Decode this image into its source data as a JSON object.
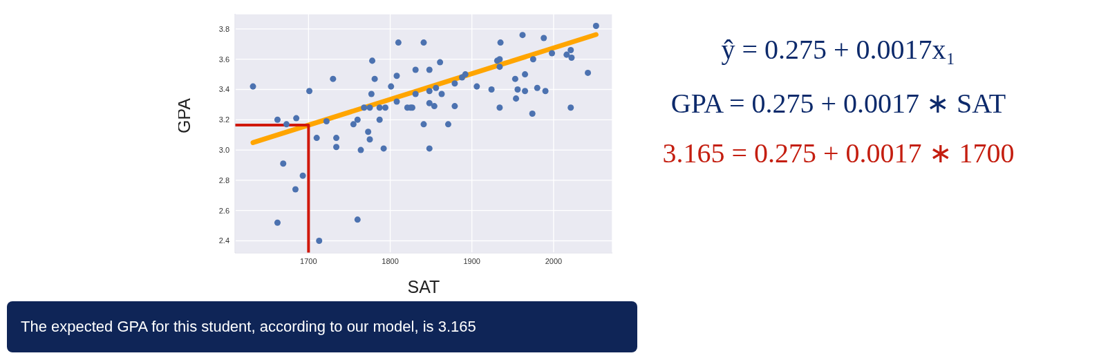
{
  "chart_data": {
    "type": "scatter",
    "xlabel": "SAT",
    "ylabel": "GPA",
    "xlim": [
      1610,
      2072
    ],
    "xticks": [
      1700,
      1800,
      1900,
      2000
    ],
    "ylim": [
      2.32,
      3.9
    ],
    "yticks": [
      2.4,
      2.6,
      2.8,
      {
        "value": 3,
        "label": "3.0"
      },
      3.2,
      3.4,
      3.6,
      3.8
    ],
    "grid": true,
    "series": [
      {
        "color": "#4c72b0",
        "x": [
          1632,
          1662,
          1673,
          1685,
          1669,
          1693,
          1684,
          1662,
          1701,
          1710,
          1713,
          1722,
          1730,
          1734,
          1734,
          1755,
          1760,
          1764,
          1760,
          1773,
          1775,
          1768,
          1775,
          1777,
          1778,
          1781,
          1787,
          1794,
          1787,
          1792,
          1801,
          1808,
          1810,
          1808,
          1821,
          1827,
          1831,
          1825,
          1831,
          1841,
          1848,
          1841,
          1848,
          1848,
          1854,
          1856,
          1861,
          1863,
          1848,
          1871,
          1879,
          1879,
          1888,
          1892,
          1906,
          1924,
          1934,
          1931,
          1934,
          1934,
          1935,
          1953,
          1954,
          1956,
          1965,
          1965,
          1962,
          1975,
          1974,
          1980,
          1990,
          1988,
          1998,
          2016,
          2021,
          2022,
          2021,
          2042,
          2052
        ],
        "values": [
          3.42,
          3.2,
          3.17,
          3.21,
          2.91,
          2.83,
          2.74,
          2.52,
          3.39,
          3.08,
          2.4,
          3.19,
          3.47,
          3.08,
          3.02,
          3.17,
          3.2,
          3.0,
          2.54,
          3.12,
          3.07,
          3.28,
          3.28,
          3.37,
          3.59,
          3.47,
          3.28,
          3.28,
          3.2,
          3.01,
          3.42,
          3.49,
          3.71,
          3.32,
          3.28,
          3.28,
          3.53,
          3.28,
          3.37,
          3.71,
          3.53,
          3.17,
          3.39,
          3.31,
          3.29,
          3.41,
          3.58,
          3.37,
          3.01,
          3.17,
          3.29,
          3.44,
          3.48,
          3.5,
          3.42,
          3.4,
          3.28,
          3.59,
          3.6,
          3.55,
          3.71,
          3.47,
          3.34,
          3.4,
          3.5,
          3.39,
          3.76,
          3.6,
          3.24,
          3.41,
          3.39,
          3.74,
          3.64,
          3.63,
          3.66,
          3.61,
          3.28,
          3.51,
          3.82
        ]
      },
      {
        "type": "line",
        "color": "#ffa500",
        "x": [
          1632,
          2052
        ],
        "values": [
          3.049,
          3.763
        ]
      },
      {
        "type": "line",
        "color": "#d0180c",
        "x": [
          1610,
          1700,
          1700
        ],
        "values": [
          3.165,
          3.165,
          2.32
        ]
      }
    ],
    "annotations": [
      "ŷ = 0.275 + 0.0017x₁",
      "GPA = 0.275 + 0.0017 ∗ SAT",
      "3.165 = 0.275 + 0.0017 ∗ 1700",
      "The expected GPA for this student, according to our model, is 3.165"
    ]
  }
}
